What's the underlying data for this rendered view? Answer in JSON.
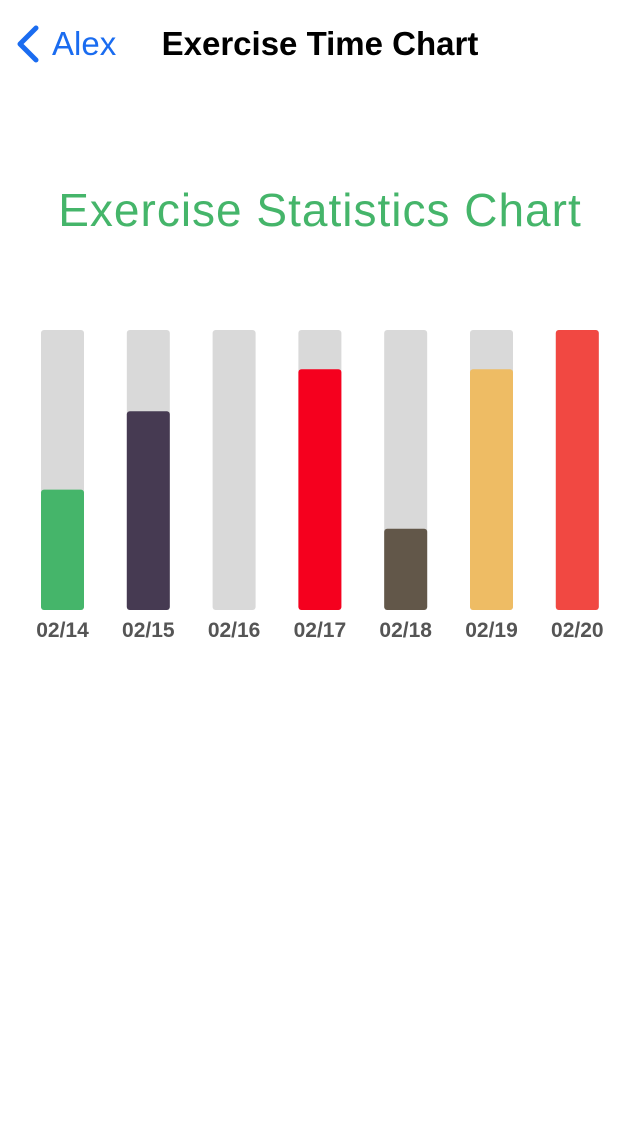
{
  "nav": {
    "back_label": "Alex",
    "title": "Exercise Time Chart",
    "back_icon": "chevron-left-icon",
    "accent_color": "#1a6cf0"
  },
  "chart_title": "Exercise Statistics Chart",
  "chart_title_color": "#45b56a",
  "chart_data": {
    "type": "bar",
    "title": "Exercise Statistics Chart",
    "xlabel": "",
    "ylabel": "",
    "ylim": [
      0,
      1
    ],
    "grid": false,
    "categories": [
      "02/14",
      "02/15",
      "02/16",
      "02/17",
      "02/18",
      "02/19",
      "02/20"
    ],
    "values": [
      0.43,
      0.71,
      0.0,
      0.86,
      0.29,
      0.86,
      1.0
    ],
    "colors": [
      "#45b56a",
      "#463a52",
      "#d9d9d9",
      "#f5001e",
      "#625749",
      "#eebc64",
      "#f14842"
    ],
    "track_color": "#d9d9d9"
  }
}
